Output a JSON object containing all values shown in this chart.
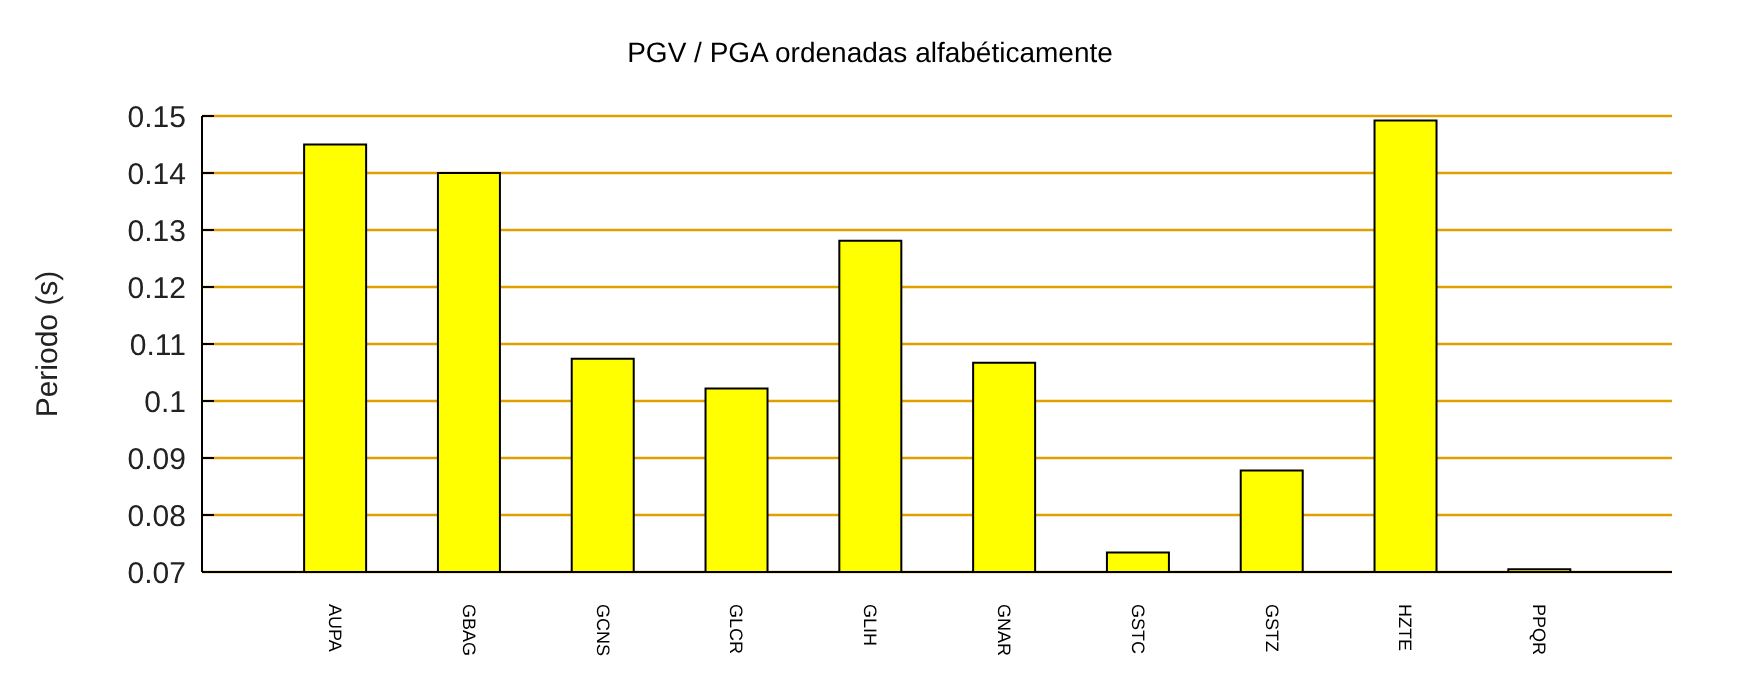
{
  "chart_data": {
    "type": "bar",
    "title": "PGV / PGA ordenadas alfabéticamente",
    "ylabel": "Periodo (s)",
    "categories": [
      "AUPA",
      "GBAG",
      "GCNS",
      "GLCR",
      "GLIH",
      "GNAR",
      "GSTC",
      "GSTZ",
      "HZTE",
      "PPQR"
    ],
    "values": [
      0.145,
      0.14,
      0.1074,
      0.1022,
      0.1281,
      0.1067,
      0.0734,
      0.0878,
      0.1492,
      0.0705
    ],
    "color": "#ffff00",
    "ylim": [
      0.07,
      0.15
    ],
    "yticks": [
      0.07,
      0.08,
      0.09,
      0.1,
      0.11,
      0.12,
      0.13,
      0.14,
      0.15
    ],
    "grid": "y",
    "legend": false
  }
}
